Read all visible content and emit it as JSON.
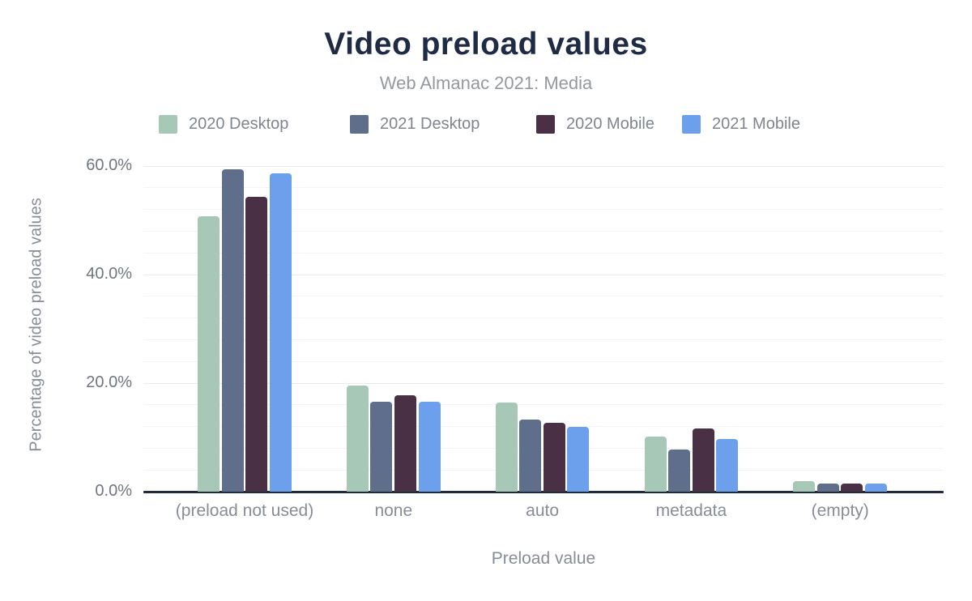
{
  "chart_data": {
    "type": "bar",
    "title": "Video preload values",
    "subtitle": "Web Almanac 2021: Media",
    "xlabel": "Preload value",
    "ylabel": "Percentage of video preload values",
    "categories": [
      "(preload not used)",
      "none",
      "auto",
      "metadata",
      "(empty)"
    ],
    "series": [
      {
        "name": "2020 Desktop",
        "color": "#a7c8b6",
        "values": [
          50.7,
          19.6,
          16.4,
          10.1,
          1.9
        ]
      },
      {
        "name": "2021 Desktop",
        "color": "#5f6e8b",
        "values": [
          59.4,
          16.6,
          13.3,
          7.8,
          1.5
        ]
      },
      {
        "name": "2020 Mobile",
        "color": "#4a3044",
        "values": [
          54.3,
          17.8,
          12.7,
          11.6,
          1.5
        ]
      },
      {
        "name": "2021 Mobile",
        "color": "#6c9fec",
        "values": [
          58.7,
          16.6,
          11.9,
          9.7,
          1.5
        ]
      }
    ],
    "ylim": [
      0,
      60
    ],
    "yticks": [
      {
        "value": 0,
        "label": "0.0%"
      },
      {
        "value": 20,
        "label": "20.0%"
      },
      {
        "value": 40,
        "label": "40.0%"
      },
      {
        "value": 60,
        "label": "60.0%"
      }
    ],
    "grid": {
      "visible": true,
      "major_interval": 20,
      "minor_interval": 4,
      "orientation": "horizontal"
    },
    "legend_position": "top"
  },
  "colors": {
    "background": "#ffffff",
    "title": "#1f2a44",
    "subtitle": "#94999f",
    "axis_line": "#202b3e",
    "tick_label": "#70767f",
    "category_label": "#878d96",
    "axis_title": "#878d96",
    "gridline_major": "#ebebee",
    "gridline_minor": "#f4f4f6"
  }
}
